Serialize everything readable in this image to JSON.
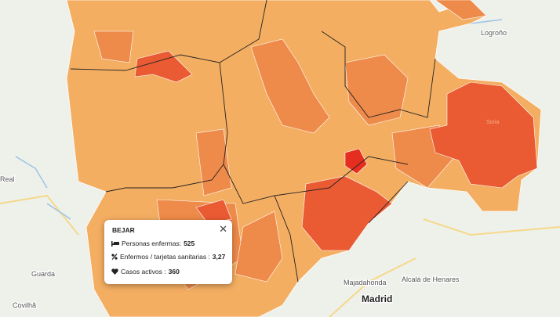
{
  "map": {
    "places": [
      "Logroño",
      "Real",
      "Guarda",
      "Covilhã",
      "Majadahonda",
      "Alcalá de Henares",
      "Madrid",
      "Soria"
    ]
  },
  "popup": {
    "title": "BEJAR",
    "rows": [
      {
        "label": "Personas enfermas:",
        "value": "525"
      },
      {
        "label": "Enfermos / tarjetas sanitarias :",
        "value": "3,27"
      },
      {
        "label": "Casos activos :",
        "value": "360"
      }
    ]
  }
}
